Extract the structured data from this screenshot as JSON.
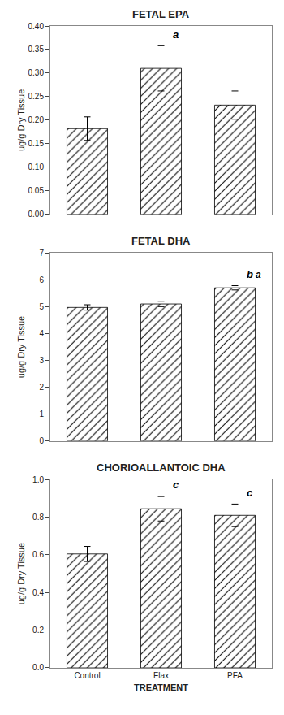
{
  "chart_data": [
    {
      "type": "bar",
      "title": "FETAL EPA",
      "categories": [
        "Control",
        "Flax",
        "PFA"
      ],
      "values": [
        0.182,
        0.31,
        0.232
      ],
      "errors": [
        0.025,
        0.048,
        0.03
      ],
      "color": "#d4d4d4",
      "ylim": [
        0,
        0.4
      ],
      "yticks": [
        {
          "value": 0,
          "label": "0.00"
        },
        0.05,
        {
          "value": 0.1,
          "label": "0.10"
        },
        0.15,
        {
          "value": 0.2,
          "label": "0.20"
        },
        0.25,
        {
          "value": 0.3,
          "label": "0.30"
        },
        0.35,
        {
          "value": 0.4,
          "label": "0.40"
        }
      ],
      "ylabel": "ug/g Dry Tissue",
      "annotations": [
        {
          "x": "Flax",
          "text": "a"
        }
      ],
      "grid": false,
      "tick_labels": "y"
    },
    {
      "type": "bar",
      "title": "FETAL DHA",
      "categories": [
        "Control",
        "Flax",
        "PFA"
      ],
      "values": [
        4.97,
        5.1,
        5.7
      ],
      "errors": [
        0.1,
        0.1,
        0.08
      ],
      "color": "#d4d4d4",
      "ylim": [
        0,
        7
      ],
      "yticks": [
        0,
        1,
        2,
        3,
        4,
        5,
        6,
        7
      ],
      "ylabel": "ug/g Dry Tissue",
      "annotations": [
        {
          "x": "PFA",
          "text": "b"
        },
        {
          "x": "PFA",
          "text": "a"
        }
      ],
      "grid": false,
      "tick_labels": "y"
    },
    {
      "type": "bar",
      "title": "CHORIOALLANTOIC DHA",
      "categories": [
        "Control",
        "Flax",
        "PFA"
      ],
      "values": [
        0.605,
        0.845,
        0.81
      ],
      "errors": [
        0.04,
        0.065,
        0.06
      ],
      "color": "#d4d4d4",
      "ylim": [
        0,
        1.0
      ],
      "yticks": [
        {
          "value": 0,
          "label": "0.0"
        },
        0.2,
        0.4,
        0.6,
        0.8,
        {
          "value": 1.0,
          "label": "1.0"
        }
      ],
      "ylabel": "ug/g Dry Tissue",
      "xlabel": "TREATMENT",
      "annotations": [
        {
          "x": "Flax",
          "text": "c"
        },
        {
          "x": "PFA",
          "text": "c"
        }
      ],
      "grid": false
    }
  ]
}
